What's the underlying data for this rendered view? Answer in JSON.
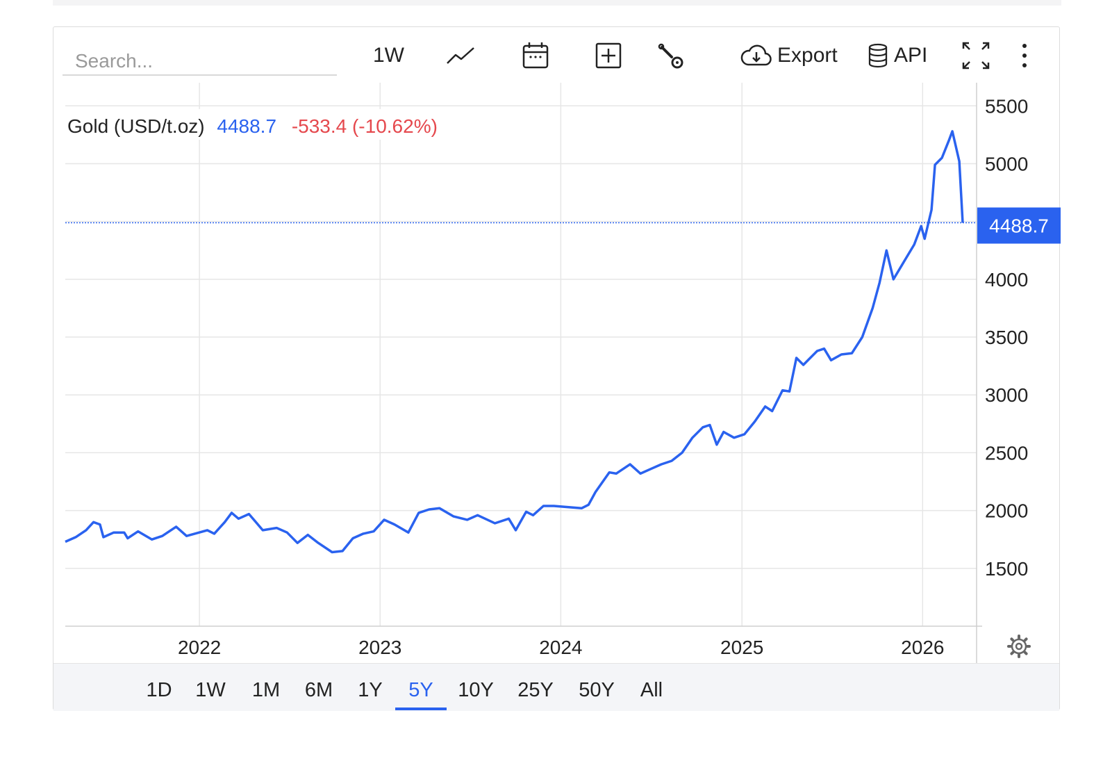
{
  "toolbar": {
    "search_placeholder": "Search...",
    "interval_label": "1W",
    "export_label": "Export",
    "api_label": "API",
    "icons": [
      "line-chart-icon",
      "calendar-icon",
      "plus-square-icon",
      "wrench-icon",
      "cloud-download-icon",
      "database-icon",
      "fullscreen-icon",
      "more-vertical-icon"
    ]
  },
  "legend": {
    "name": "Gold (USD/t.oz)",
    "last_value": "4488.7",
    "change": "-533.4 (-10.62%)"
  },
  "last_price_label": "4488.7",
  "ranges": [
    "1D",
    "1W",
    "1M",
    "6M",
    "1Y",
    "5Y",
    "10Y",
    "25Y",
    "50Y",
    "All"
  ],
  "active_range": "5Y",
  "colors": {
    "line": "#2a62ef",
    "accent": "#2a62ef",
    "negative": "#e5484d",
    "grid": "#e6e6e6"
  },
  "chart_data": {
    "type": "line",
    "series": [
      {
        "name": "Gold (USD/t.oz)",
        "points": [
          [
            "2021-04-05",
            1730
          ],
          [
            "2021-04-26",
            1770
          ],
          [
            "2021-05-17",
            1830
          ],
          [
            "2021-06-01",
            1900
          ],
          [
            "2021-06-14",
            1880
          ],
          [
            "2021-06-21",
            1770
          ],
          [
            "2021-07-12",
            1810
          ],
          [
            "2021-08-02",
            1810
          ],
          [
            "2021-08-09",
            1760
          ],
          [
            "2021-08-30",
            1820
          ],
          [
            "2021-09-27",
            1750
          ],
          [
            "2021-10-18",
            1780
          ],
          [
            "2021-11-15",
            1860
          ],
          [
            "2021-12-06",
            1780
          ],
          [
            "2021-12-27",
            1805
          ],
          [
            "2022-01-17",
            1830
          ],
          [
            "2022-01-31",
            1800
          ],
          [
            "2022-02-21",
            1900
          ],
          [
            "2022-03-07",
            1980
          ],
          [
            "2022-03-21",
            1930
          ],
          [
            "2022-04-11",
            1970
          ],
          [
            "2022-04-25",
            1900
          ],
          [
            "2022-05-09",
            1830
          ],
          [
            "2022-06-06",
            1850
          ],
          [
            "2022-06-27",
            1810
          ],
          [
            "2022-07-18",
            1720
          ],
          [
            "2022-08-08",
            1790
          ],
          [
            "2022-08-29",
            1720
          ],
          [
            "2022-09-26",
            1640
          ],
          [
            "2022-10-17",
            1650
          ],
          [
            "2022-11-07",
            1760
          ],
          [
            "2022-11-28",
            1800
          ],
          [
            "2022-12-19",
            1820
          ],
          [
            "2023-01-09",
            1920
          ],
          [
            "2023-01-30",
            1880
          ],
          [
            "2023-02-27",
            1810
          ],
          [
            "2023-03-20",
            1980
          ],
          [
            "2023-04-10",
            2010
          ],
          [
            "2023-05-01",
            2020
          ],
          [
            "2023-05-29",
            1950
          ],
          [
            "2023-06-26",
            1920
          ],
          [
            "2023-07-17",
            1960
          ],
          [
            "2023-08-21",
            1890
          ],
          [
            "2023-09-18",
            1930
          ],
          [
            "2023-10-02",
            1830
          ],
          [
            "2023-10-23",
            1990
          ],
          [
            "2023-11-06",
            1960
          ],
          [
            "2023-11-27",
            2040
          ],
          [
            "2023-12-18",
            2040
          ],
          [
            "2024-01-15",
            2030
          ],
          [
            "2024-02-12",
            2020
          ],
          [
            "2024-02-26",
            2050
          ],
          [
            "2024-03-11",
            2160
          ],
          [
            "2024-04-08",
            2330
          ],
          [
            "2024-04-22",
            2320
          ],
          [
            "2024-05-20",
            2400
          ],
          [
            "2024-06-10",
            2320
          ],
          [
            "2024-07-01",
            2360
          ],
          [
            "2024-07-22",
            2400
          ],
          [
            "2024-08-12",
            2430
          ],
          [
            "2024-09-02",
            2500
          ],
          [
            "2024-09-23",
            2630
          ],
          [
            "2024-10-14",
            2720
          ],
          [
            "2024-10-28",
            2740
          ],
          [
            "2024-11-11",
            2570
          ],
          [
            "2024-11-25",
            2680
          ],
          [
            "2024-12-16",
            2630
          ],
          [
            "2025-01-06",
            2660
          ],
          [
            "2025-01-27",
            2770
          ],
          [
            "2025-02-17",
            2900
          ],
          [
            "2025-03-03",
            2860
          ],
          [
            "2025-03-24",
            3040
          ],
          [
            "2025-04-07",
            3030
          ],
          [
            "2025-04-21",
            3320
          ],
          [
            "2025-05-05",
            3260
          ],
          [
            "2025-05-19",
            3320
          ],
          [
            "2025-06-02",
            3380
          ],
          [
            "2025-06-16",
            3400
          ],
          [
            "2025-06-30",
            3300
          ],
          [
            "2025-07-21",
            3350
          ],
          [
            "2025-08-11",
            3360
          ],
          [
            "2025-09-01",
            3500
          ],
          [
            "2025-09-22",
            3750
          ],
          [
            "2025-10-06",
            3970
          ],
          [
            "2025-10-20",
            4250
          ],
          [
            "2025-11-03",
            4000
          ],
          [
            "2025-11-24",
            4150
          ],
          [
            "2025-12-15",
            4300
          ],
          [
            "2025-12-29",
            4460
          ],
          [
            "2026-01-05",
            4350
          ],
          [
            "2026-01-19",
            4600
          ],
          [
            "2026-01-26",
            4990
          ],
          [
            "2026-02-09",
            5050
          ],
          [
            "2026-02-23",
            5200
          ],
          [
            "2026-03-02",
            5280
          ],
          [
            "2026-03-16",
            5020
          ],
          [
            "2026-03-23",
            4488.7
          ]
        ]
      }
    ],
    "x_ticks": [
      "2022",
      "2023",
      "2024",
      "2025",
      "2026"
    ],
    "y_ticks": [
      1500,
      2000,
      2500,
      3000,
      3500,
      4000,
      4500,
      5000,
      5500
    ],
    "y_tick_labels": [
      "1500",
      "2000",
      "2500",
      "3000",
      "3500",
      "4000",
      "5000",
      "5500"
    ],
    "last_value": 4488.7,
    "xlim": [
      "2021-04-05",
      "2026-04-20"
    ],
    "ylim": [
      1000,
      5700
    ],
    "grid": true,
    "y_axis_position": "right"
  }
}
